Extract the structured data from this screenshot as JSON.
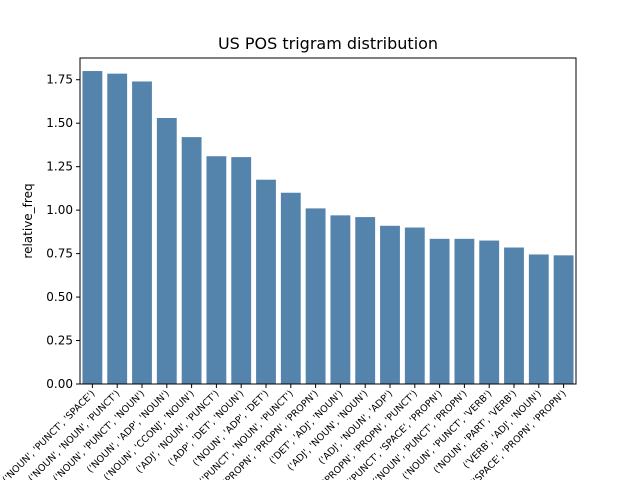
{
  "chart_data": {
    "type": "bar",
    "title": "US POS trigram distribution",
    "xlabel": "",
    "ylabel": "relative_freq",
    "ylim": [
      0,
      1.875
    ],
    "yticks": [
      "0.00",
      "0.25",
      "0.50",
      "0.75",
      "1.00",
      "1.25",
      "1.50",
      "1.75"
    ],
    "ytick_values": [
      0,
      0.25,
      0.5,
      0.75,
      1.0,
      1.25,
      1.5,
      1.75
    ],
    "grid": false,
    "bar_color": "#5484ab",
    "categories": [
      "('NOUN', 'PUNCT', 'SPACE')",
      "('NOUN', 'NOUN', 'PUNCT')",
      "('NOUN', 'PUNCT', 'NOUN')",
      "('NOUN', 'ADP', 'NOUN')",
      "('NOUN', 'CCONJ', 'NOUN')",
      "('ADJ', 'NOUN', 'PUNCT')",
      "('ADP', 'DET', 'NOUN')",
      "('NOUN', 'ADP', 'DET')",
      "('PUNCT', 'NOUN', 'PUNCT')",
      "('PROPN', 'PROPN', 'PROPN')",
      "('DET', 'ADJ', 'NOUN')",
      "('ADJ', 'NOUN', 'NOUN')",
      "('ADJ', 'NOUN', 'ADP')",
      "('PROPN', 'PROPN', 'PUNCT')",
      "('PUNCT', 'SPACE', 'PROPN')",
      "('NOUN', 'PUNCT', 'PROPN')",
      "('NOUN', 'PUNCT', 'VERB')",
      "('NOUN', 'PART', 'VERB')",
      "('VERB', 'ADJ', 'NOUN')",
      "('SPACE', 'PROPN', 'PROPN')"
    ],
    "values": [
      1.8,
      1.785,
      1.74,
      1.53,
      1.42,
      1.31,
      1.305,
      1.175,
      1.1,
      1.01,
      0.97,
      0.96,
      0.91,
      0.9,
      0.835,
      0.835,
      0.825,
      0.785,
      0.745,
      0.74
    ]
  }
}
